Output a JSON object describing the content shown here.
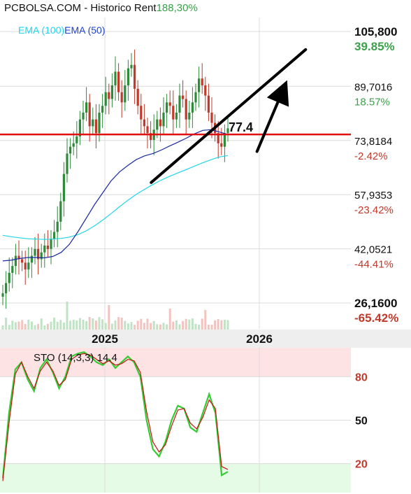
{
  "header": {
    "title": "PCBOLSA.COM - Historico",
    "rent_label": "Rent",
    "rent_value": "188,30%"
  },
  "legend": {
    "ema100": "EMA (100)",
    "ema50": "EMA (50)"
  },
  "colors": {
    "up": "#2e8b3a",
    "down": "#c0392b",
    "ema100": "#20d6e8",
    "ema50": "#1a2aa0",
    "support": "#e01010",
    "sto_k": "#33cc33",
    "sto_d": "#c81414",
    "overbought_zone": "#fde3e3",
    "oversold_zone": "#e6fbe6"
  },
  "chart_data": [
    {
      "type": "candlestick",
      "title": "",
      "price_axis": [
        {
          "value": "105,800",
          "pct": "39.85%"
        },
        {
          "value": "89,7016",
          "pct": "18.57%"
        },
        {
          "value": "73,8184",
          "pct": "-2.42%"
        },
        {
          "value": "57,9353",
          "pct": "-23.42%"
        },
        {
          "value": "42,0521",
          "pct": "-44.41%"
        },
        {
          "value": "26,1600",
          "pct": "-65.42%"
        }
      ],
      "ylim": [
        26.16,
        105.8
      ],
      "x_ticks": [
        "2025",
        "2026"
      ],
      "support_level": 75.6,
      "last_price_label": "77.4",
      "series": [
        {
          "name": "EMA (100)",
          "values": [
            46,
            45.6,
            45.3,
            45.0,
            44.9,
            44.8,
            44.9,
            45.1,
            45.5,
            46.2,
            47.3,
            48.8,
            50.5,
            52.4,
            54.4,
            56.3,
            58.0,
            59.5,
            60.9,
            62.2,
            63.3,
            64.3,
            65.3,
            66.3,
            67.3,
            68.2,
            69.0,
            69.4
          ]
        },
        {
          "name": "EMA (50)",
          "values": [
            38.5,
            38.7,
            39.2,
            39.5,
            39.5,
            39.4,
            39.8,
            41.0,
            43.4,
            47.0,
            51.0,
            55.0,
            58.5,
            62.0,
            64.6,
            66.5,
            68.2,
            69.3,
            70.0,
            71.0,
            72.2,
            73.3,
            74.5,
            75.8,
            76.8,
            77.0,
            76.3,
            75.6
          ]
        }
      ],
      "closes": [
        29,
        32,
        35,
        37,
        40,
        39,
        38,
        36,
        38,
        40,
        42,
        39,
        41,
        43,
        42,
        45,
        47,
        50,
        56,
        64,
        70,
        72,
        73,
        75,
        80,
        82,
        85,
        78,
        80,
        76,
        82,
        84,
        88,
        86,
        90,
        94,
        88,
        85,
        90,
        95,
        96,
        89,
        84,
        80,
        78,
        76,
        74,
        77,
        80,
        78,
        82,
        85,
        84,
        80,
        82,
        87,
        86,
        80,
        82,
        85,
        88,
        92,
        90,
        87,
        82,
        79,
        76,
        73,
        72,
        76,
        77.4
      ],
      "annotations": [
        {
          "type": "trendline",
          "from": {
            "x": 0.3,
            "y": 61.5
          },
          "to": {
            "x": 1.3,
            "y": 100.5
          }
        },
        {
          "type": "arrow",
          "from": {
            "x": 0.985,
            "y": 70.6
          },
          "to": {
            "x": 1.18,
            "y": 91.5
          }
        }
      ]
    },
    {
      "type": "line",
      "title": "STO (14,3,3)",
      "current_value": "14.4",
      "levels": [
        "80",
        "50",
        "20"
      ],
      "ylim": [
        0,
        100
      ],
      "series": [
        {
          "name": "%K",
          "values": [
            10,
            55,
            85,
            90,
            78,
            70,
            86,
            92,
            83,
            72,
            80,
            94,
            96,
            97,
            94,
            90,
            88,
            92,
            86,
            90,
            94,
            90,
            80,
            50,
            30,
            25,
            35,
            50,
            60,
            58,
            45,
            42,
            55,
            68,
            55,
            12,
            14.4
          ]
        },
        {
          "name": "%D",
          "values": [
            8,
            48,
            82,
            90,
            80,
            72,
            84,
            90,
            84,
            74,
            78,
            92,
            95,
            96,
            95,
            92,
            89,
            91,
            88,
            89,
            92,
            91,
            83,
            56,
            35,
            28,
            33,
            46,
            57,
            58,
            48,
            44,
            52,
            64,
            58,
            18,
            16
          ]
        }
      ]
    }
  ]
}
